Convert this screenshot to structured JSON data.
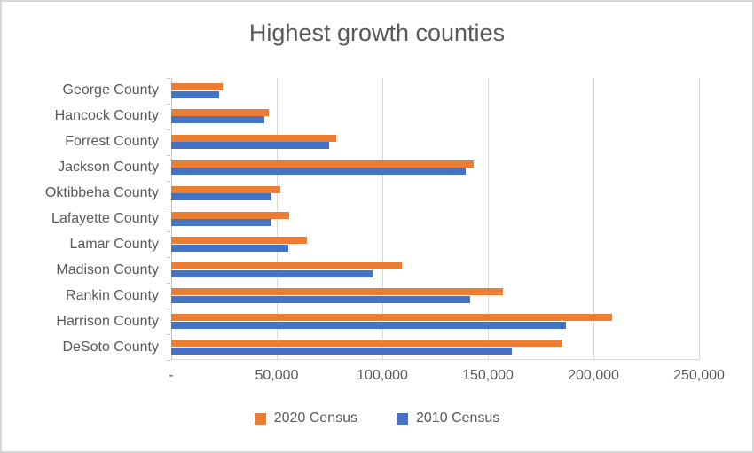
{
  "chart_data": {
    "type": "bar",
    "orientation": "horizontal",
    "title": "Highest growth counties",
    "categories": [
      "George County",
      "Hancock County",
      "Forrest County",
      "Jackson County",
      "Oktibbeha County",
      "Lafayette County",
      "Lamar County",
      "Madison County",
      "Rankin County",
      "Harrison County",
      "DeSoto County"
    ],
    "series": [
      {
        "name": "2020 Census",
        "color": "#ED7D31",
        "values": [
          24350,
          46053,
          78158,
          143252,
          51788,
          55813,
          64222,
          109145,
          157031,
          208621,
          185314
        ]
      },
      {
        "name": "2010 Census",
        "color": "#4472C4",
        "values": [
          22578,
          43929,
          74934,
          139668,
          47671,
          47351,
          55658,
          95203,
          141617,
          187105,
          161252
        ]
      }
    ],
    "xlim": [
      0,
      250000
    ],
    "x_ticks": [
      "-",
      "50,000",
      "100,000",
      "150,000",
      "200,000",
      "250,000"
    ],
    "x_tick_values": [
      0,
      50000,
      100000,
      150000,
      200000,
      250000
    ],
    "grid": "vertical-only",
    "legend_position": "bottom-center",
    "colors": {
      "text": "#595959",
      "gridline": "#D9D9D9",
      "axis": "#C3C3C3",
      "frame_border": "#D6D6D6",
      "background": "#FFFFFF"
    }
  }
}
